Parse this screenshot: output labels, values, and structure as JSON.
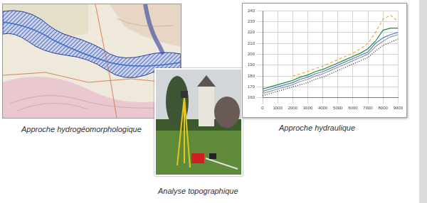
{
  "captions": {
    "map": "Approche hydrogéomorphologique",
    "photo": "Analyse topographique",
    "chart": "Approche hydraulique"
  },
  "chart_data": {
    "type": "line",
    "x": [
      0,
      500,
      1000,
      1500,
      2000,
      2500,
      3000,
      3500,
      4000,
      4500,
      5000,
      5500,
      6000,
      6500,
      7000,
      7500,
      8000,
      8500,
      9000
    ],
    "xlim": [
      0,
      9000
    ],
    "xticks": [
      0,
      1000,
      2000,
      3000,
      4000,
      5000,
      6000,
      7000,
      8000,
      9000
    ],
    "ylim": [
      160,
      240
    ],
    "yticks": [
      160,
      170,
      180,
      190,
      200,
      210,
      220,
      230,
      240
    ],
    "grid": true,
    "series": [
      {
        "color": "#f4a640",
        "line_style": "dashed",
        "values": [
          null,
          null,
          null,
          null,
          180,
          182,
          184,
          187,
          189,
          192,
          195,
          198,
          201,
          205,
          210,
          220,
          232,
          236,
          230
        ]
      },
      {
        "color": "#1f8a3a",
        "line_style": "solid",
        "values": [
          168,
          170,
          172,
          174,
          176,
          179,
          181,
          184,
          186,
          189,
          192,
          195,
          198,
          201,
          205,
          212,
          222,
          224,
          224
        ]
      },
      {
        "color": "#4f7fc0",
        "line_style": "solid",
        "values": [
          166,
          168,
          170,
          172,
          174,
          177,
          179,
          182,
          184,
          187,
          190,
          193,
          196,
          199,
          202,
          210,
          215,
          218,
          220
        ]
      },
      {
        "color": "#9a9a9a",
        "line_style": "solid",
        "values": [
          164,
          166,
          168,
          170,
          172,
          175,
          177,
          180,
          182,
          185,
          188,
          191,
          194,
          197,
          200,
          207,
          212,
          216,
          218
        ]
      },
      {
        "color": "#222222",
        "line_style": "dotted",
        "values": [
          162,
          164,
          166,
          168,
          170,
          172,
          174,
          177,
          179,
          182,
          185,
          188,
          191,
          194,
          197,
          203,
          208,
          211,
          214
        ]
      }
    ]
  }
}
